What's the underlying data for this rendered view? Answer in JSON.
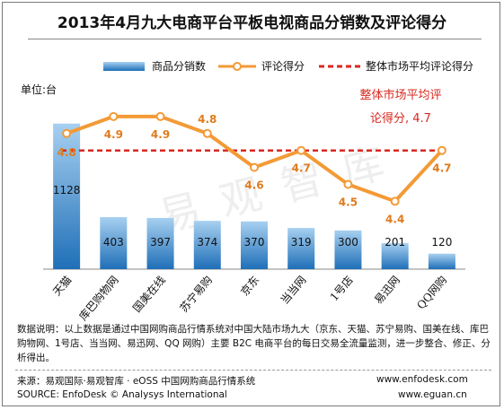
{
  "title": "2013年4月九大电商平台平板电视商品分销数及评论得分",
  "unit_label": "单位:台",
  "legend": {
    "bar": "商品分销数",
    "line": "评论得分",
    "avg": "整体市场平均评论得分"
  },
  "avg_annotation": {
    "line1": "整体市场平均评",
    "line2": "论得分, 4.7"
  },
  "watermark_text": "易观智库",
  "note": "数据说明：以上数据是通过中国网购商品行情系统对中国大陆市场九大（京东、天猫、苏宁易购、国美在线、库巴购物网、1号店、当当网、易迅网、QQ 网购）主要 B2C 电商平台的每日交易全流量监测，进一步整合、修正、分析得出。",
  "source": {
    "cn": "来源：易观国际·易观智库 · eOSS 中国网购商品行情系统",
    "en": "SOURCE: EnfoDesk © Analysys International",
    "url1": "www.enfodesk.com",
    "url2": "www.eguan.cn"
  },
  "colors": {
    "bar_top": "#a7d0f0",
    "bar_bottom": "#1f6fb8",
    "line": "#f39a36",
    "line_label": "#e07b1e",
    "avg": "#d9281f"
  },
  "chart_data": {
    "type": "bar",
    "categories": [
      "天猫",
      "库巴购物网",
      "国美在线",
      "苏宁易购",
      "京东",
      "当当网",
      "1号店",
      "易迅网",
      "QQ网购"
    ],
    "series": [
      {
        "name": "商品分销数",
        "type": "bar",
        "axis": "left",
        "values": [
          1128,
          403,
          397,
          374,
          370,
          319,
          300,
          201,
          120
        ]
      },
      {
        "name": "评论得分",
        "type": "line",
        "axis": "right",
        "values": [
          4.8,
          4.9,
          4.9,
          4.8,
          4.6,
          4.7,
          4.5,
          4.4,
          4.7
        ]
      }
    ],
    "reference_line": {
      "name": "整体市场平均评论得分",
      "value": 4.7,
      "axis": "right"
    },
    "ylabel": "单位:台",
    "ylim_left": [
      0,
      1300
    ],
    "ylim_right": [
      4.0,
      5.2
    ],
    "grid": false,
    "legend_position": "top"
  }
}
